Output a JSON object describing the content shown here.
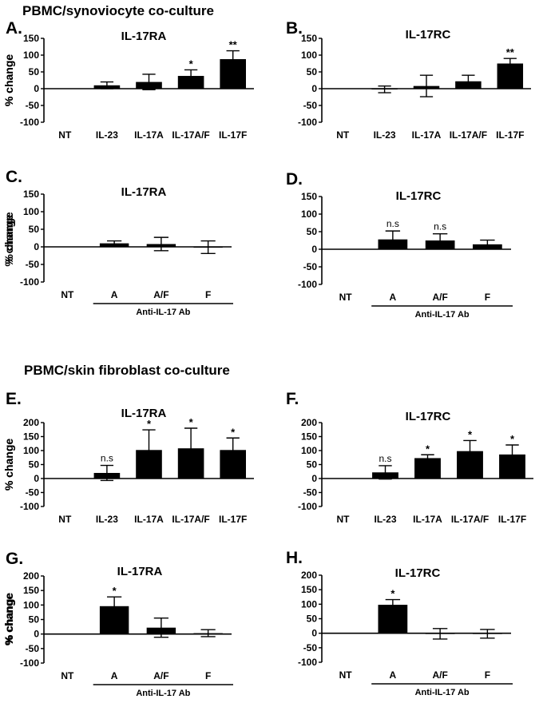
{
  "figure": {
    "sections": [
      {
        "title": "PBMC/synoviocyte co-culture"
      },
      {
        "title": "PBMC/skin fibroblast co-culture"
      }
    ]
  },
  "chart_data": [
    {
      "panel": "A.",
      "type": "bar",
      "title": "IL-17RA",
      "ylabel": "% change",
      "ylim": [
        -100,
        150
      ],
      "yticks": [
        -100,
        -50,
        0,
        50,
        100,
        150
      ],
      "categories": [
        "NT",
        "IL-23",
        "IL-17A",
        "IL-17A/F",
        "IL-17F"
      ],
      "values": [
        0,
        10,
        20,
        38,
        88
      ],
      "errors": [
        0,
        10,
        23,
        18,
        25
      ],
      "significance": [
        "",
        "",
        "",
        "*",
        "**"
      ],
      "group_label": "",
      "group_start": 0
    },
    {
      "panel": "B.",
      "type": "bar",
      "title": "IL-17RC",
      "ylabel": "% change",
      "ylim": [
        -100,
        150
      ],
      "yticks": [
        -100,
        -50,
        0,
        50,
        100,
        150
      ],
      "categories": [
        "NT",
        "IL-23",
        "IL-17A",
        "IL-17A/F",
        "IL-17F"
      ],
      "values": [
        0,
        -2,
        8,
        22,
        75
      ],
      "errors": [
        0,
        10,
        32,
        18,
        15
      ],
      "significance": [
        "",
        "",
        "",
        "",
        "**"
      ],
      "group_label": "",
      "group_start": 0
    },
    {
      "panel": "C.",
      "type": "bar",
      "title": "IL-17RA",
      "ylabel": "% change",
      "ylim": [
        -100,
        150
      ],
      "yticks": [
        -100,
        -50,
        0,
        50,
        100,
        150
      ],
      "categories": [
        "NT",
        "A",
        "A/F",
        "F"
      ],
      "values": [
        0,
        10,
        8,
        -1
      ],
      "errors": [
        0,
        7,
        19,
        18
      ],
      "significance": [
        "",
        "",
        "",
        ""
      ],
      "group_label": "Anti-IL-17 Ab",
      "group_start": 1
    },
    {
      "panel": "D.",
      "type": "bar",
      "title": "IL-17RC",
      "ylabel": "% change",
      "ylim": [
        -100,
        150
      ],
      "yticks": [
        -100,
        -50,
        0,
        50,
        100,
        150
      ],
      "categories": [
        "NT",
        "A",
        "A/F",
        "F"
      ],
      "values": [
        0,
        28,
        25,
        14
      ],
      "errors": [
        0,
        24,
        19,
        12
      ],
      "significance": [
        "",
        "n.s",
        "n.s",
        ""
      ],
      "group_label": "Anti-IL-17 Ab",
      "group_start": 1
    },
    {
      "panel": "E.",
      "type": "bar",
      "title": "IL-17RA",
      "ylabel": "% change",
      "ylim": [
        -100,
        200
      ],
      "yticks": [
        -100,
        -50,
        0,
        50,
        100,
        150,
        200
      ],
      "categories": [
        "NT",
        "IL-23",
        "IL-17A",
        "IL-17A/F",
        "IL-17F"
      ],
      "values": [
        0,
        20,
        102,
        108,
        102
      ],
      "errors": [
        0,
        27,
        72,
        72,
        43
      ],
      "significance": [
        "",
        "n.s",
        "*",
        "*",
        "*"
      ],
      "group_label": "",
      "group_start": 0
    },
    {
      "panel": "F.",
      "type": "bar",
      "title": "IL-17RC",
      "ylabel": "% change",
      "ylim": [
        -100,
        200
      ],
      "yticks": [
        -100,
        -50,
        0,
        50,
        100,
        150,
        200
      ],
      "categories": [
        "NT",
        "IL-23",
        "IL-17A",
        "IL-17A/F",
        "IL-17F"
      ],
      "values": [
        0,
        22,
        73,
        98,
        86
      ],
      "errors": [
        0,
        24,
        12,
        38,
        34
      ],
      "significance": [
        "",
        "n.s",
        "*",
        "*",
        "*"
      ],
      "group_label": "",
      "group_start": 0
    },
    {
      "panel": "G.",
      "type": "bar",
      "title": "IL-17RA",
      "ylabel": "% change",
      "ylim": [
        -100,
        200
      ],
      "yticks": [
        -100,
        -50,
        0,
        50,
        100,
        150,
        200
      ],
      "categories": [
        "NT",
        "A",
        "A/F",
        "F"
      ],
      "values": [
        0,
        96,
        22,
        3
      ],
      "errors": [
        0,
        32,
        33,
        12
      ],
      "significance": [
        "",
        "*",
        "",
        ""
      ],
      "group_label": "Anti-IL-17 Ab",
      "group_start": 1
    },
    {
      "panel": "H.",
      "type": "bar",
      "title": "IL-17RC",
      "ylabel": "% change",
      "ylim": [
        -100,
        200
      ],
      "yticks": [
        -100,
        -50,
        0,
        50,
        100,
        150,
        200
      ],
      "categories": [
        "NT",
        "A",
        "A/F",
        "F"
      ],
      "values": [
        0,
        98,
        -2,
        -2
      ],
      "errors": [
        0,
        18,
        18,
        15
      ],
      "significance": [
        "",
        "*",
        "",
        ""
      ],
      "group_label": "Anti-IL-17 Ab",
      "group_start": 1
    }
  ]
}
